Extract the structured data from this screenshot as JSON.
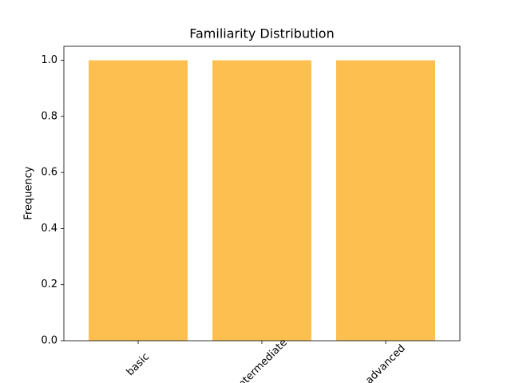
{
  "chart_data": {
    "type": "bar",
    "title": "Familiarity Distribution",
    "y_label": "Frequency",
    "categories": [
      "basic",
      "intermediate",
      "advanced"
    ],
    "values": [
      1,
      1,
      1
    ],
    "color": "#fcbf50",
    "ylim": [
      0,
      1.05
    ],
    "yticks": [
      {
        "value": 0,
        "label": "0.0"
      },
      0.2,
      0.4,
      0.6,
      0.8,
      {
        "value": 1,
        "label": "1.0"
      }
    ]
  }
}
